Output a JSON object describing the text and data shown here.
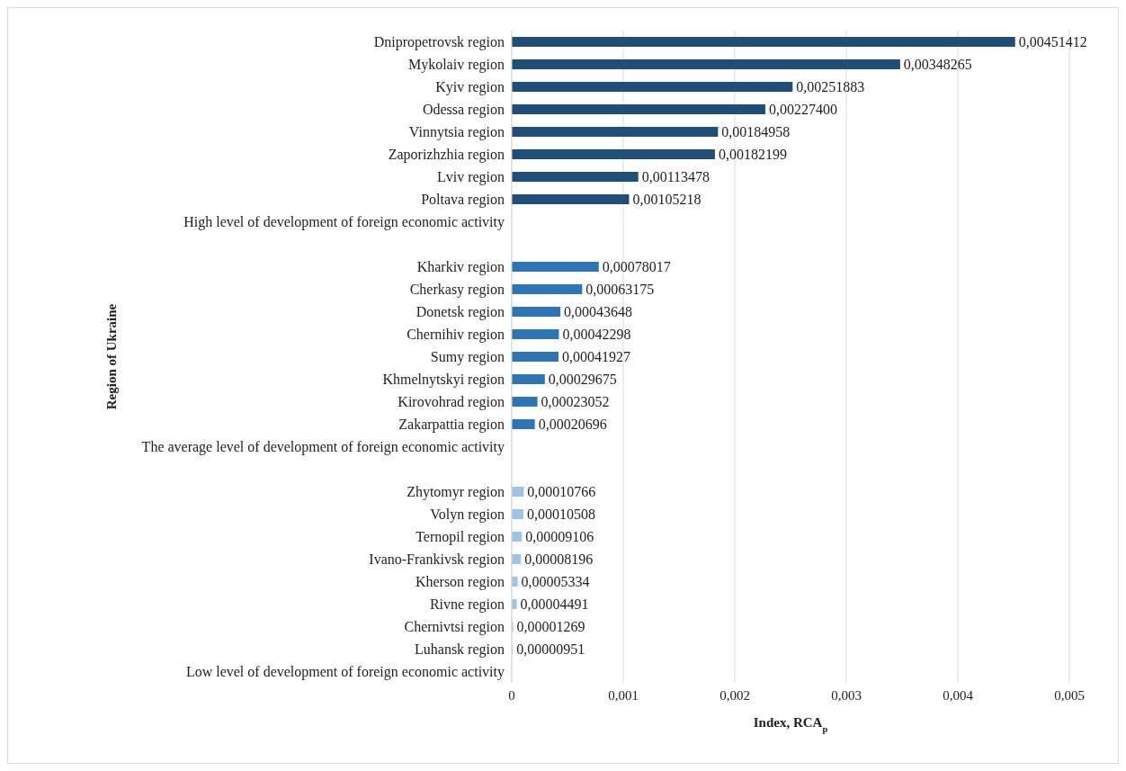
{
  "chart_data": {
    "type": "bar",
    "orientation": "horizontal",
    "xlabel": "Index, RCA$_{p}$",
    "ylabel": "Region of Ukraine",
    "categories": [
      "Dnipropetrovsk region",
      "Mykolaiv region",
      "Kyiv region",
      "Odessa region",
      "Vinnytsia region",
      "Zaporizhzhia region",
      "Lviv region",
      "Poltava region",
      "High level of development of foreign economic activity",
      null,
      "Kharkiv region",
      "Cherkasy region",
      "Donetsk region",
      "Chernihiv region",
      "Sumy region",
      "Khmelnytskyi region",
      "Kirovohrad region",
      "Zakarpattia region",
      "The average level of development of foreign economic activity",
      null,
      "Zhytomyr region",
      "Volyn region",
      "Ternopil region",
      "Ivano-Frankivsk region",
      "Kherson region",
      "Rivne region",
      "Chernivtsi region",
      "Luhansk region",
      "Low level of development of foreign economic activity"
    ],
    "values": [
      0.00451412,
      0.00348265,
      0.00251883,
      0.002274,
      0.00184958,
      0.00182199,
      0.00113478,
      0.00105218,
      null,
      null,
      0.00078017,
      0.00063175,
      0.00043648,
      0.00042298,
      0.00041927,
      0.00029675,
      0.00023052,
      0.00020696,
      null,
      null,
      0.00010766,
      0.00010508,
      9.106e-05,
      8.196e-05,
      5.334e-05,
      4.491e-05,
      1.269e-05,
      9.51e-06,
      null
    ],
    "value_labels": [
      "0,00451412",
      "0,00348265",
      "0,00251883",
      "0,00227400",
      "0,00184958",
      "0,00182199",
      "0,00113478",
      "0,00105218",
      null,
      null,
      "0,00078017",
      "0,00063175",
      "0,00043648",
      "0,00042298",
      "0,00041927",
      "0,00029675",
      "0,00023052",
      "0,00020696",
      null,
      null,
      "0,00010766",
      "0,00010508",
      "0,00009106",
      "0,00008196",
      "0,00005334",
      "0,00004491",
      "0,00001269",
      "0,00000951",
      null
    ],
    "colors": [
      "#1f4e79",
      "#1f4e79",
      "#1f4e79",
      "#1f4e79",
      "#1f4e79",
      "#1f4e79",
      "#1f4e79",
      "#1f4e79",
      null,
      null,
      "#2e75b6",
      "#2e75b6",
      "#2e75b6",
      "#2e75b6",
      "#2e75b6",
      "#2e75b6",
      "#2e75b6",
      "#2e75b6",
      null,
      null,
      "#9dc3e6",
      "#9dc3e6",
      "#9dc3e6",
      "#9dc3e6",
      "#9dc3e6",
      "#9dc3e6",
      "#9dc3e6",
      "#9dc3e6",
      null
    ],
    "xlim": [
      0,
      0.005
    ],
    "xticks": [
      {
        "value": 0,
        "label": "0"
      },
      {
        "value": 0.001,
        "label": "0,001"
      },
      {
        "value": 0.002,
        "label": "0,002"
      },
      {
        "value": 0.003,
        "label": "0,003"
      },
      {
        "value": 0.004,
        "label": "0,004"
      },
      {
        "value": 0.005,
        "label": "0,005"
      }
    ],
    "grid": "x"
  }
}
